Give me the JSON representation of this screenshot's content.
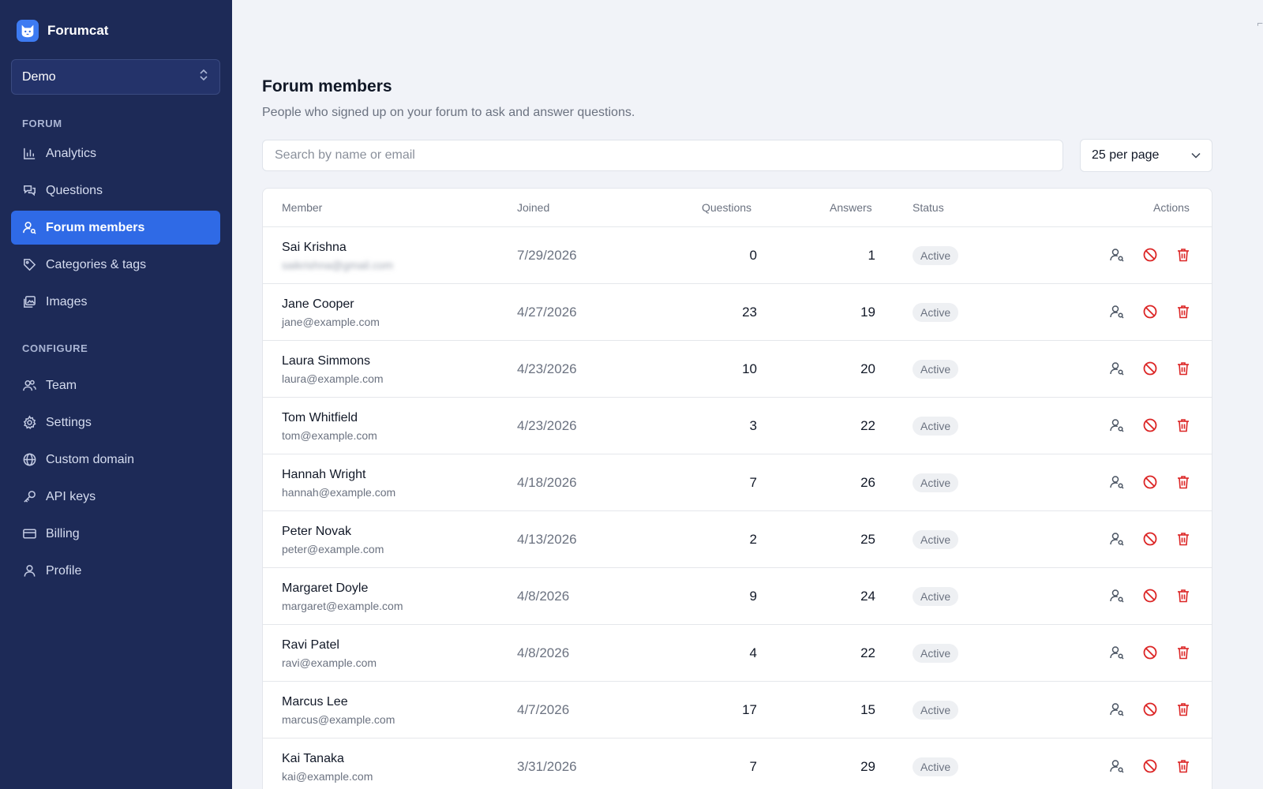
{
  "brand": {
    "name": "Forumcat"
  },
  "workspace": {
    "label": "Demo"
  },
  "sidebar": {
    "section_forum": "FORUM",
    "section_configure": "CONFIGURE",
    "forum_items": [
      {
        "label": "Analytics",
        "icon": "bar-chart-icon"
      },
      {
        "label": "Questions",
        "icon": "chat-bubbles-icon"
      },
      {
        "label": "Forum members",
        "icon": "user-search-icon",
        "active": true
      },
      {
        "label": "Categories & tags",
        "icon": "tag-icon"
      },
      {
        "label": "Images",
        "icon": "images-icon"
      }
    ],
    "configure_items": [
      {
        "label": "Team",
        "icon": "users-icon"
      },
      {
        "label": "Settings",
        "icon": "gear-icon"
      },
      {
        "label": "Custom domain",
        "icon": "globe-icon"
      },
      {
        "label": "API keys",
        "icon": "key-icon"
      },
      {
        "label": "Billing",
        "icon": "credit-card-icon"
      },
      {
        "label": "Profile",
        "icon": "user-icon"
      }
    ]
  },
  "main": {
    "title": "Forum members",
    "subtitle": "People who signed up on your forum to ask and answer questions.",
    "search_placeholder": "Search by name or email",
    "per_page": "25 per page"
  },
  "table": {
    "headers": {
      "member": "Member",
      "joined": "Joined",
      "questions": "Questions",
      "answers": "Answers",
      "status": "Status",
      "actions": "Actions"
    },
    "rows": [
      {
        "name": "Sai Krishna",
        "email": "saikrishna@gmail.com",
        "email_blurred": true,
        "joined": "7/29/2026",
        "questions": "0",
        "answers": "1",
        "status": "Active"
      },
      {
        "name": "Jane Cooper",
        "email": "jane@example.com",
        "joined": "4/27/2026",
        "questions": "23",
        "answers": "19",
        "status": "Active"
      },
      {
        "name": "Laura Simmons",
        "email": "laura@example.com",
        "joined": "4/23/2026",
        "questions": "10",
        "answers": "20",
        "status": "Active"
      },
      {
        "name": "Tom Whitfield",
        "email": "tom@example.com",
        "joined": "4/23/2026",
        "questions": "3",
        "answers": "22",
        "status": "Active"
      },
      {
        "name": "Hannah Wright",
        "email": "hannah@example.com",
        "joined": "4/18/2026",
        "questions": "7",
        "answers": "26",
        "status": "Active"
      },
      {
        "name": "Peter Novak",
        "email": "peter@example.com",
        "joined": "4/13/2026",
        "questions": "2",
        "answers": "25",
        "status": "Active"
      },
      {
        "name": "Margaret Doyle",
        "email": "margaret@example.com",
        "joined": "4/8/2026",
        "questions": "9",
        "answers": "24",
        "status": "Active"
      },
      {
        "name": "Ravi Patel",
        "email": "ravi@example.com",
        "joined": "4/8/2026",
        "questions": "4",
        "answers": "22",
        "status": "Active"
      },
      {
        "name": "Marcus Lee",
        "email": "marcus@example.com",
        "joined": "4/7/2026",
        "questions": "17",
        "answers": "15",
        "status": "Active"
      },
      {
        "name": "Kai Tanaka",
        "email": "kai@example.com",
        "joined": "3/31/2026",
        "questions": "7",
        "answers": "29",
        "status": "Active"
      }
    ]
  },
  "colors": {
    "sidebar_bg": "#1d2a57",
    "accent": "#2f6ae6",
    "danger": "#dc2626",
    "page_bg": "#f1f3f8"
  }
}
